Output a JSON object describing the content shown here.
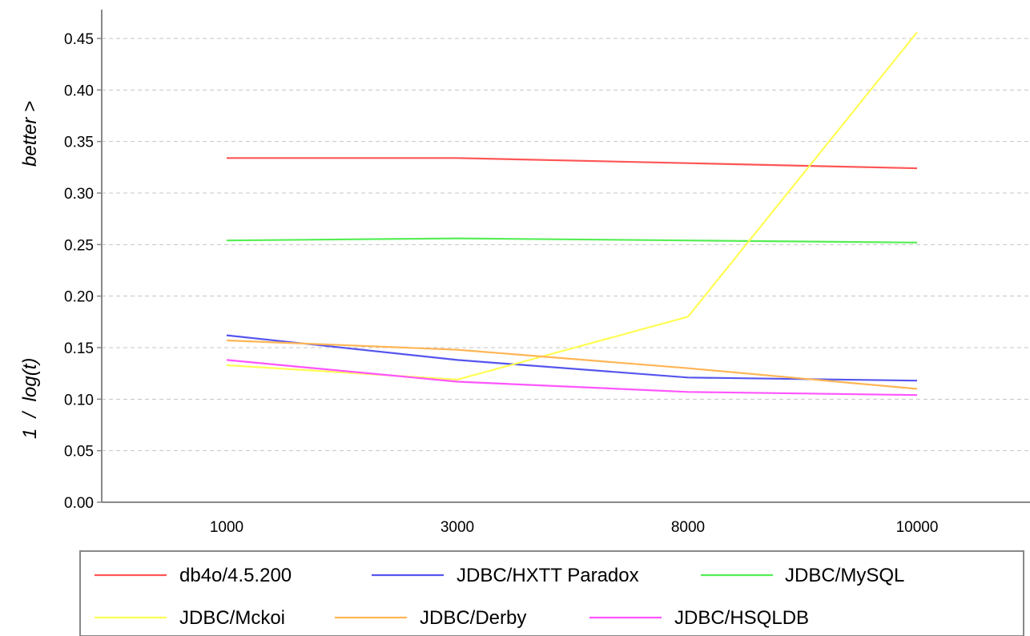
{
  "chart_data": {
    "type": "line",
    "title": "",
    "xlabel": "",
    "ylabel": "1  /  log(t)",
    "ylabel_secondary": "better >",
    "categories": [
      "1000",
      "3000",
      "8000",
      "10000"
    ],
    "ylim": [
      0,
      0.47
    ],
    "y_ticks": [
      "0.00",
      "0.05",
      "0.10",
      "0.15",
      "0.20",
      "0.25",
      "0.30",
      "0.35",
      "0.40",
      "0.45"
    ],
    "grid": "horizontal dashed",
    "legend_position": "bottom",
    "series": [
      {
        "name": "db4o/4.5.200",
        "color": "#ff5555",
        "values": [
          0.334,
          0.334,
          0.329,
          0.324
        ]
      },
      {
        "name": "JDBC/HXTT Paradox",
        "color": "#5555ee",
        "values": [
          0.162,
          0.138,
          0.121,
          0.118
        ]
      },
      {
        "name": "JDBC/MySQL",
        "color": "#55ee55",
        "values": [
          0.254,
          0.256,
          0.254,
          0.252
        ]
      },
      {
        "name": "JDBC/Mckoi",
        "color": "#ffff55",
        "values": [
          0.133,
          0.119,
          0.18,
          0.456
        ]
      },
      {
        "name": "JDBC/Derby",
        "color": "#ffb555",
        "values": [
          0.157,
          0.148,
          0.13,
          0.11
        ]
      },
      {
        "name": "JDBC/HSQLDB",
        "color": "#ff55ff",
        "values": [
          0.138,
          0.117,
          0.107,
          0.104
        ]
      }
    ]
  }
}
